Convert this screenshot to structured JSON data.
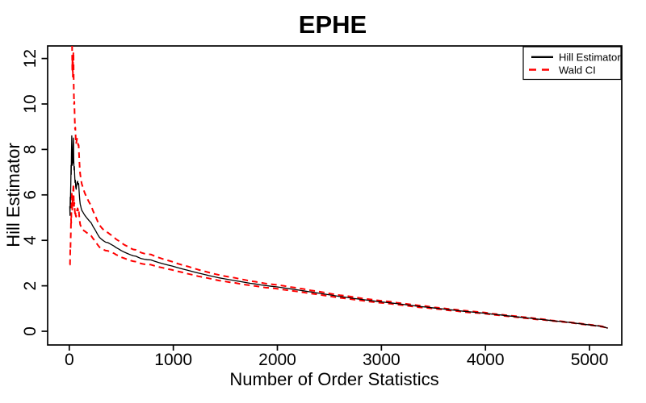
{
  "title": "EPHE",
  "colors": {
    "background": "#FFFFFF",
    "frame": "#000000",
    "hill_line": "#000000",
    "wald_ci_line": "#FF0000",
    "text": "#000000"
  },
  "legend": {
    "entries": [
      {
        "label": "Hill Estimator",
        "color": "#000000",
        "style": "solid"
      },
      {
        "label": "Wald CI",
        "color": "#FF0000",
        "style": "dashed"
      }
    ],
    "position": "top-right"
  },
  "chart_data": {
    "type": "line",
    "title": "EPHE",
    "xlabel": "Number of Order Statistics",
    "ylabel": "Hill Estimator",
    "x_ticks": [
      0,
      1000,
      2000,
      3000,
      4000,
      5000
    ],
    "y_ticks": [
      0,
      2,
      4,
      6,
      8,
      10,
      12
    ],
    "xlim": [
      -208,
      5310
    ],
    "ylim": [
      -0.6,
      12.55
    ],
    "grid": false,
    "legend_position": "top-right",
    "x": [
      5,
      7,
      9,
      11,
      13,
      15,
      17,
      19,
      21,
      24,
      26,
      29,
      32,
      34,
      37,
      40,
      43,
      46,
      49,
      52,
      55,
      58,
      62,
      66,
      70,
      75,
      80,
      85,
      90,
      95,
      100,
      105,
      110,
      115,
      120,
      130,
      140,
      150,
      170,
      190,
      210,
      230,
      250,
      270,
      290,
      310,
      330,
      350,
      370,
      390,
      410,
      430,
      450,
      475,
      500,
      530,
      560,
      590,
      615,
      640,
      665,
      690,
      720,
      750,
      785,
      820,
      860,
      900,
      945,
      990,
      1040,
      1090,
      1140,
      1190,
      1240,
      1290,
      1340,
      1390,
      1440,
      1490,
      1540,
      1590,
      1640,
      1690,
      1740,
      1790,
      1840,
      1890,
      1940,
      2000,
      2060,
      2120,
      2180,
      2250,
      2320,
      2390,
      2460,
      2530,
      2600,
      2670,
      2740,
      2810,
      2880,
      2950,
      3020,
      3090,
      3160,
      3230,
      3300,
      3370,
      3440,
      3510,
      3580,
      3650,
      3720,
      3790,
      3860,
      3930,
      4000,
      4070,
      4140,
      4210,
      4280,
      4350,
      4420,
      4490,
      4560,
      4630,
      4700,
      4770,
      4840,
      4910,
      4980,
      5040,
      5090,
      5130,
      5160,
      5175
    ],
    "series": [
      {
        "name": "Hill Estimator",
        "color": "#000000",
        "style": "solid",
        "width": 1.3,
        "values": [
          5.5,
          5.1,
          5.9,
          5.6,
          6.2,
          6.5,
          7.3,
          6.9,
          7.8,
          8.6,
          8.0,
          7.3,
          7.9,
          7.4,
          8.2,
          8.5,
          7.6,
          7.1,
          7.25,
          6.85,
          6.55,
          6.65,
          6.35,
          6.25,
          6.4,
          6.55,
          6.6,
          6.45,
          6.5,
          6.15,
          5.8,
          5.6,
          5.5,
          5.4,
          5.32,
          5.25,
          5.17,
          5.1,
          4.98,
          4.87,
          4.77,
          4.6,
          4.45,
          4.28,
          4.13,
          4.05,
          3.98,
          3.92,
          3.9,
          3.85,
          3.8,
          3.75,
          3.68,
          3.62,
          3.55,
          3.48,
          3.42,
          3.36,
          3.32,
          3.3,
          3.25,
          3.2,
          3.17,
          3.15,
          3.14,
          3.08,
          3.02,
          2.97,
          2.92,
          2.87,
          2.8,
          2.74,
          2.68,
          2.62,
          2.56,
          2.51,
          2.45,
          2.4,
          2.35,
          2.31,
          2.27,
          2.23,
          2.19,
          2.15,
          2.11,
          2.08,
          2.04,
          2.01,
          1.98,
          1.95,
          1.91,
          1.87,
          1.83,
          1.78,
          1.73,
          1.68,
          1.63,
          1.58,
          1.53,
          1.49,
          1.44,
          1.4,
          1.36,
          1.32,
          1.28,
          1.25,
          1.21,
          1.17,
          1.13,
          1.09,
          1.06,
          1.02,
          0.99,
          0.95,
          0.92,
          0.88,
          0.85,
          0.82,
          0.79,
          0.75,
          0.72,
          0.68,
          0.65,
          0.61,
          0.58,
          0.54,
          0.51,
          0.47,
          0.44,
          0.41,
          0.37,
          0.33,
          0.29,
          0.26,
          0.23,
          0.2,
          0.16,
          0.13
        ]
      },
      {
        "name": "Wald CI upper",
        "color": "#FF0000",
        "style": "dashed",
        "width": 2,
        "values": [
          44.6,
          19.7,
          17.0,
          13.7,
          13.6,
          13.2,
          13.9,
          12.5,
          13.6,
          14.3,
          13.0,
          11.5,
          12.1,
          11.2,
          12.1,
          12.3,
          10.8,
          10.0,
          10.1,
          9.4,
          8.9,
          8.96,
          8.45,
          8.24,
          8.36,
          8.47,
          8.45,
          8.19,
          8.19,
          7.7,
          7.21,
          6.92,
          6.76,
          6.61,
          6.48,
          6.34,
          6.2,
          6.07,
          5.86,
          5.68,
          5.52,
          5.28,
          5.08,
          4.86,
          4.67,
          4.56,
          4.46,
          4.38,
          4.34,
          4.27,
          4.21,
          4.14,
          4.05,
          3.98,
          3.89,
          3.8,
          3.73,
          3.65,
          3.6,
          3.58,
          3.52,
          3.46,
          3.42,
          3.39,
          3.38,
          3.31,
          3.24,
          3.18,
          3.12,
          3.06,
          2.98,
          2.91,
          2.85,
          2.78,
          2.71,
          2.65,
          2.59,
          2.53,
          2.48,
          2.43,
          2.39,
          2.35,
          2.3,
          2.26,
          2.21,
          2.18,
          2.14,
          2.1,
          2.07,
          2.04,
          2.0,
          1.95,
          1.91,
          1.86,
          1.8,
          1.75,
          1.7,
          1.64,
          1.59,
          1.55,
          1.5,
          1.45,
          1.41,
          1.37,
          1.33,
          1.3,
          1.25,
          1.21,
          1.17,
          1.13,
          1.1,
          1.05,
          1.02,
          0.98,
          0.95,
          0.91,
          0.88,
          0.85,
          0.82,
          0.77,
          0.74,
          0.7,
          0.67,
          0.63,
          0.6,
          0.56,
          0.53,
          0.48,
          0.45,
          0.42,
          0.38,
          0.34,
          0.3,
          0.27,
          0.24,
          0.21,
          0.17,
          0.13
        ]
      },
      {
        "name": "Wald CI lower",
        "color": "#FF0000",
        "style": "dashed",
        "width": 2,
        "values": [
          2.93,
          2.93,
          3.57,
          3.52,
          4.02,
          4.32,
          4.95,
          4.76,
          5.46,
          6.14,
          5.78,
          5.35,
          5.87,
          5.54,
          6.2,
          6.49,
          5.85,
          5.51,
          5.66,
          5.39,
          5.18,
          5.29,
          5.08,
          5.04,
          5.19,
          5.34,
          5.41,
          5.32,
          5.39,
          5.12,
          4.85,
          4.7,
          4.63,
          4.57,
          4.51,
          4.48,
          4.43,
          4.4,
          4.33,
          4.26,
          4.2,
          4.07,
          3.96,
          3.82,
          3.7,
          3.64,
          3.59,
          3.55,
          3.54,
          3.5,
          3.46,
          3.43,
          3.37,
          3.32,
          3.26,
          3.21,
          3.16,
          3.11,
          3.08,
          3.06,
          3.02,
          2.98,
          2.95,
          2.94,
          2.93,
          2.88,
          2.83,
          2.79,
          2.74,
          2.7,
          2.64,
          2.59,
          2.53,
          2.48,
          2.42,
          2.38,
          2.33,
          2.28,
          2.23,
          2.2,
          2.16,
          2.13,
          2.09,
          2.05,
          2.02,
          1.99,
          1.95,
          1.92,
          1.9,
          1.87,
          1.83,
          1.79,
          1.76,
          1.71,
          1.66,
          1.62,
          1.57,
          1.52,
          1.47,
          1.44,
          1.39,
          1.35,
          1.31,
          1.27,
          1.24,
          1.21,
          1.17,
          1.13,
          1.09,
          1.05,
          1.03,
          0.99,
          0.96,
          0.92,
          0.89,
          0.85,
          0.82,
          0.8,
          0.77,
          0.73,
          0.7,
          0.66,
          0.63,
          0.59,
          0.56,
          0.52,
          0.5,
          0.46,
          0.43,
          0.4,
          0.36,
          0.32,
          0.28,
          0.25,
          0.22,
          0.19,
          0.16,
          0.13
        ]
      }
    ]
  }
}
